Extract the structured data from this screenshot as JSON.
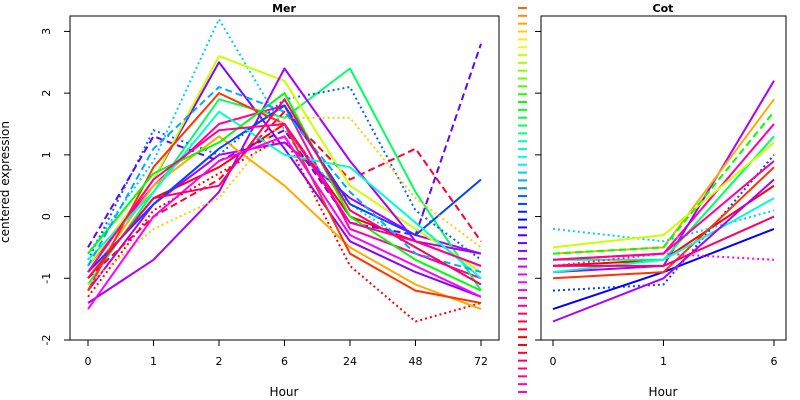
{
  "chart_data": [
    {
      "type": "line",
      "title": "Mer",
      "xlabel": "Hour",
      "ylabel": "centered expression",
      "categories": [
        "0",
        "1",
        "2",
        "6",
        "24",
        "48",
        "72"
      ],
      "yticks": [
        -2,
        -1,
        0,
        1,
        2,
        3
      ],
      "ylim": [
        -2.0,
        3.25
      ],
      "grid": false,
      "series": [
        {
          "values": [
            -1.0,
            0.3,
            0.8,
            1.5,
            0.0,
            -0.4,
            -0.8
          ],
          "color": "#ff0000",
          "dash": "solid"
        },
        {
          "values": [
            -0.8,
            0.5,
            1.5,
            1.8,
            -0.2,
            -0.6,
            -1.0
          ],
          "color": "#ff00aa",
          "dash": "solid"
        },
        {
          "values": [
            -1.2,
            0.2,
            1.0,
            1.2,
            0.3,
            -0.3,
            -0.6
          ],
          "color": "#aa00ff",
          "dash": "solid"
        },
        {
          "values": [
            -0.9,
            0.6,
            2.5,
            1.1,
            -0.4,
            -0.9,
            -1.3
          ],
          "color": "#8800ff",
          "dash": "solid"
        },
        {
          "values": [
            -0.6,
            0.9,
            3.2,
            1.4,
            0.2,
            -0.5,
            -1.1
          ],
          "color": "#00ccff",
          "dash": "dotted"
        },
        {
          "values": [
            -1.1,
            0.4,
            1.9,
            1.6,
            2.4,
            0.4,
            -1.2
          ],
          "color": "#00ff66",
          "dash": "solid"
        },
        {
          "values": [
            -0.7,
            1.4,
            1.0,
            1.9,
            2.1,
            0.1,
            -0.7
          ],
          "color": "#0066ff",
          "dash": "dotted"
        },
        {
          "values": [
            -1.3,
            0.1,
            0.7,
            1.3,
            -0.8,
            -1.7,
            -1.4
          ],
          "color": "#ff0000",
          "dash": "dotted"
        },
        {
          "values": [
            -1.0,
            0.0,
            0.6,
            1.7,
            0.6,
            1.1,
            -0.4
          ],
          "color": "#ff0033",
          "dash": "dashed"
        },
        {
          "values": [
            -0.5,
            1.3,
            0.9,
            1.4,
            -0.1,
            -0.3,
            2.8
          ],
          "color": "#6600ff",
          "dash": "dashed"
        },
        {
          "values": [
            -0.8,
            0.6,
            2.6,
            2.2,
            0.5,
            -0.2,
            -0.9
          ],
          "color": "#ccff00",
          "dash": "solid"
        },
        {
          "values": [
            -1.4,
            -0.7,
            0.4,
            2.4,
            0.9,
            -0.4,
            -0.6
          ],
          "color": "#aa00ff",
          "dash": "solid"
        },
        {
          "values": [
            -1.0,
            0.5,
            1.3,
            0.5,
            -0.5,
            -1.1,
            -1.5
          ],
          "color": "#ffaa00",
          "dash": "solid"
        },
        {
          "values": [
            -0.9,
            0.2,
            1.1,
            1.8,
            0.2,
            -0.3,
            0.6
          ],
          "color": "#0044ff",
          "dash": "solid"
        },
        {
          "values": [
            -1.2,
            0.8,
            2.0,
            1.5,
            -0.6,
            -1.2,
            -1.4
          ],
          "color": "#ff3300",
          "dash": "solid"
        },
        {
          "values": [
            -0.7,
            0.4,
            1.7,
            1.0,
            0.8,
            -0.1,
            -1.0
          ],
          "color": "#00ffcc",
          "dash": "solid"
        },
        {
          "values": [
            -1.1,
            -0.2,
            0.3,
            1.6,
            1.6,
            0.3,
            -0.5
          ],
          "color": "#ffcc00",
          "dash": "dotted"
        },
        {
          "values": [
            -0.6,
            0.7,
            1.2,
            2.0,
            0.0,
            -0.7,
            -1.2
          ],
          "color": "#00ff00",
          "dash": "solid"
        },
        {
          "values": [
            -1.5,
            0.0,
            0.9,
            1.3,
            -0.3,
            -0.8,
            -1.3
          ],
          "color": "#ff00ff",
          "dash": "solid"
        },
        {
          "values": [
            -0.8,
            1.1,
            2.1,
            1.7,
            0.4,
            -0.6,
            -0.9
          ],
          "color": "#00aaff",
          "dash": "dashed"
        },
        {
          "values": [
            -1.0,
            0.3,
            0.5,
            1.9,
            0.1,
            -0.5,
            -1.1
          ],
          "color": "#ff0066",
          "dash": "solid"
        },
        {
          "values": [
            -0.9,
            0.6,
            1.4,
            1.5,
            -0.1,
            -0.4,
            -0.8
          ],
          "color": "#ff0099",
          "dash": "solid"
        }
      ]
    },
    {
      "type": "line",
      "title": "Cot",
      "xlabel": "Hour",
      "ylabel": "",
      "categories": [
        "0",
        "1",
        "6"
      ],
      "ylim": [
        -2.0,
        3.25
      ],
      "grid": false,
      "series": [
        {
          "values": [
            -0.8,
            -0.7,
            0.5
          ],
          "color": "#ff0000",
          "dash": "solid"
        },
        {
          "values": [
            -0.7,
            -0.6,
            1.5
          ],
          "color": "#ff00aa",
          "dash": "solid"
        },
        {
          "values": [
            -0.9,
            -0.8,
            2.2
          ],
          "color": "#aa00ff",
          "dash": "solid"
        },
        {
          "values": [
            -0.6,
            -0.5,
            1.9
          ],
          "color": "#ffaa00",
          "dash": "solid"
        },
        {
          "values": [
            -1.2,
            -1.1,
            1.0
          ],
          "color": "#0044ff",
          "dash": "dotted"
        },
        {
          "values": [
            -1.5,
            -0.9,
            -0.2
          ],
          "color": "#0000ff",
          "dash": "solid"
        },
        {
          "values": [
            -0.2,
            -0.4,
            0.1
          ],
          "color": "#00ccff",
          "dash": "dotted"
        },
        {
          "values": [
            -0.7,
            -0.7,
            1.3
          ],
          "color": "#00ff66",
          "dash": "solid"
        },
        {
          "values": [
            -1.0,
            -0.9,
            0.8
          ],
          "color": "#ff3300",
          "dash": "solid"
        },
        {
          "values": [
            -0.8,
            -0.6,
            -0.7
          ],
          "color": "#ff00ff",
          "dash": "dotted"
        },
        {
          "values": [
            -0.5,
            -0.3,
            1.2
          ],
          "color": "#ccff00",
          "dash": "solid"
        },
        {
          "values": [
            -0.9,
            -0.7,
            0.3
          ],
          "color": "#00ffcc",
          "dash": "solid"
        },
        {
          "values": [
            -1.7,
            -1.0,
            0.6
          ],
          "color": "#aa00ff",
          "dash": "solid"
        },
        {
          "values": [
            -0.6,
            -0.5,
            1.7
          ],
          "color": "#00ff00",
          "dash": "dashed"
        },
        {
          "values": [
            -0.8,
            -0.8,
            0.0
          ],
          "color": "#ff0066",
          "dash": "solid"
        },
        {
          "values": [
            -0.7,
            -0.6,
            0.9
          ],
          "color": "#ff0099",
          "dash": "solid"
        }
      ]
    }
  ],
  "legend_strip": {
    "colors": [
      "#ff6600",
      "#ff8800",
      "#ffaa00",
      "#ffcc00",
      "#ffee00",
      "#eeff00",
      "#ccff00",
      "#aaff00",
      "#88ff00",
      "#66ff00",
      "#44ff00",
      "#22ff00",
      "#00ff00",
      "#00ff22",
      "#00ff44",
      "#00ff66",
      "#00ff88",
      "#00ffaa",
      "#00ffcc",
      "#00ffee",
      "#00eeff",
      "#00ccff",
      "#00aaff",
      "#0088ff",
      "#0066ff",
      "#0044ff",
      "#0022ff",
      "#0000ff",
      "#2200ff",
      "#4400ff",
      "#6600ff",
      "#8800ff",
      "#aa00ff",
      "#cc00ff",
      "#ee00ff",
      "#ff00ee",
      "#ff00cc",
      "#ff00aa",
      "#ff0088",
      "#ff0066",
      "#ff0044",
      "#ff0022",
      "#ff0000",
      "#ff0011",
      "#ff0033",
      "#ff0055",
      "#ff0077",
      "#ff0099",
      "#ff00bb",
      "#ff00dd"
    ]
  }
}
